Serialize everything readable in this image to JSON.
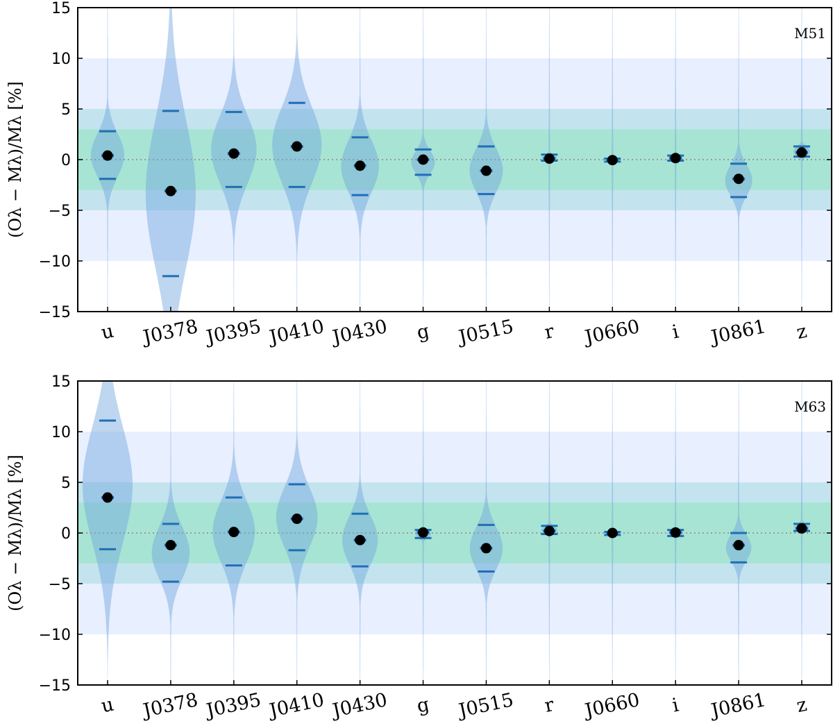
{
  "chart_data": [
    {
      "type": "violin",
      "annotation": "M51",
      "ylabel": "(Oλ − Mλ)/Mλ [%]",
      "ylim": [
        -15,
        15
      ],
      "yticks": [
        -15,
        -10,
        -5,
        0,
        5,
        10,
        15
      ],
      "categories": [
        "u",
        "J0378",
        "J0395",
        "J0410",
        "J0430",
        "g",
        "J0515",
        "r",
        "J0660",
        "i",
        "J0861",
        "z"
      ],
      "median": [
        0.4,
        -3.1,
        0.6,
        1.3,
        -0.6,
        0.0,
        -1.1,
        0.1,
        -0.05,
        0.15,
        -1.9,
        0.7
      ],
      "upper": [
        2.8,
        4.8,
        4.7,
        5.6,
        2.2,
        1.0,
        1.3,
        0.5,
        0.1,
        0.4,
        -0.4,
        1.3
      ],
      "lower": [
        -1.9,
        -11.5,
        -2.7,
        -2.7,
        -3.5,
        -1.5,
        -3.4,
        -0.1,
        -0.2,
        -0.1,
        -3.7,
        0.3
      ],
      "bands": [
        {
          "range": [
            -10,
            10
          ],
          "color": "#e8efff"
        },
        {
          "range": [
            -5,
            5
          ],
          "color": "#c3e4ee"
        },
        {
          "range": [
            -3,
            3
          ],
          "color": "#a8e4d4"
        }
      ],
      "zero_line": true
    },
    {
      "type": "violin",
      "annotation": "M63",
      "ylabel": "(Oλ − Mλ)/Mλ [%]",
      "ylim": [
        -15,
        15
      ],
      "yticks": [
        -15,
        -10,
        -5,
        0,
        5,
        10,
        15
      ],
      "categories": [
        "u",
        "J0378",
        "J0395",
        "J0410",
        "J0430",
        "g",
        "J0515",
        "r",
        "J0660",
        "i",
        "J0861",
        "z"
      ],
      "median": [
        3.5,
        -1.2,
        0.1,
        1.4,
        -0.7,
        0.05,
        -1.5,
        0.2,
        0.0,
        0.05,
        -1.2,
        0.45
      ],
      "upper": [
        11.1,
        0.9,
        3.5,
        4.8,
        1.9,
        0.3,
        0.8,
        0.7,
        0.1,
        0.3,
        0.0,
        0.9
      ],
      "lower": [
        -1.6,
        -4.8,
        -3.2,
        -1.7,
        -3.3,
        -0.5,
        -3.8,
        -0.1,
        -0.2,
        -0.3,
        -2.9,
        0.2
      ],
      "bands": [
        {
          "range": [
            -10,
            10
          ],
          "color": "#e8efff"
        },
        {
          "range": [
            -5,
            5
          ],
          "color": "#c3e4ee"
        },
        {
          "range": [
            -3,
            3
          ],
          "color": "#a8e4d4"
        }
      ],
      "zero_line": true
    }
  ],
  "colors": {
    "violin": "#6fa3dc",
    "bars": "#1f6fb4",
    "median": "#000000"
  }
}
